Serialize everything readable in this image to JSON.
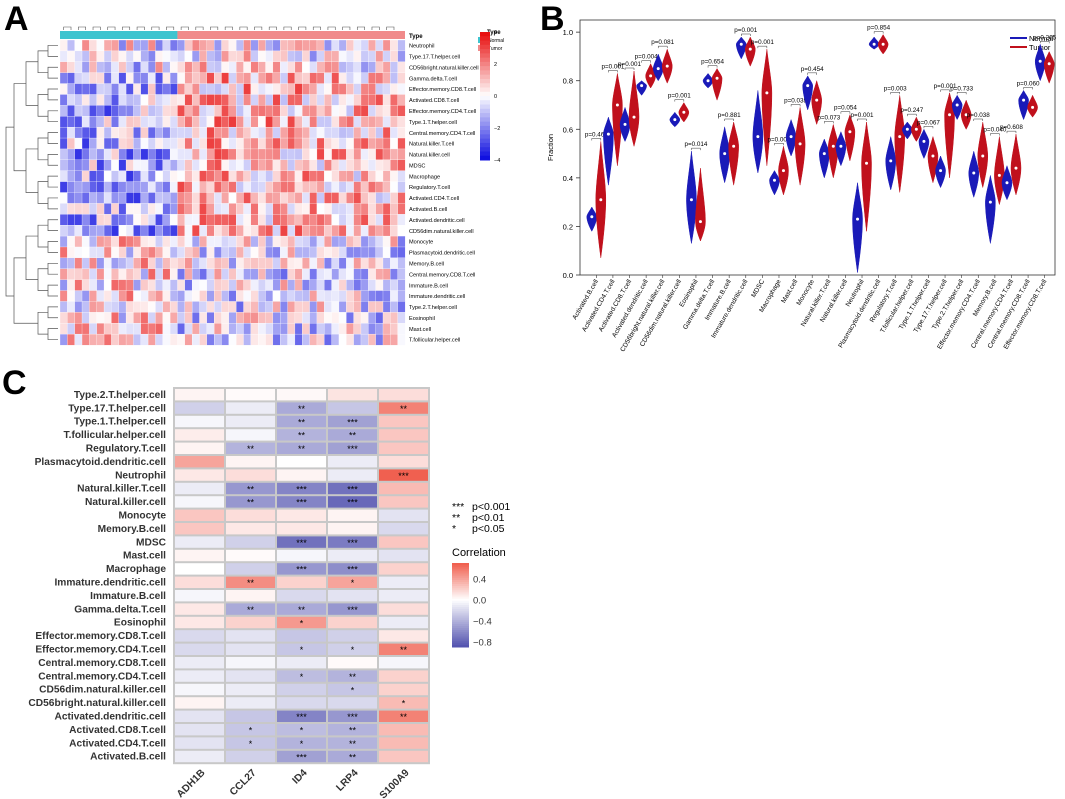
{
  "panels": {
    "a": "A",
    "b": "B",
    "c": "C"
  },
  "chart_data": [
    {
      "id": "A",
      "type": "heatmap",
      "title": "",
      "annotation_label": "Type",
      "groups": [
        {
          "name": "Normal",
          "color": "#3ec4cf",
          "count": 16
        },
        {
          "name": "Tumor",
          "color": "#f08a8a",
          "count": 31
        }
      ],
      "rows": [
        "Neutrophil",
        "Type.17.T.helper.cell",
        "CD56bright.natural.killer.cell",
        "Gamma.delta.T.cell",
        "Effector.memory.CD8.T.cell",
        "Activated.CD8.T.cell",
        "Effector.memory.CD4.T.cell",
        "Type.1.T.helper.cell",
        "Central.memory.CD4.T.cell",
        "Natural.killer.T.cell",
        "Natural.killer.cell",
        "MDSC",
        "Macrophage",
        "Regulatory.T.cell",
        "Activated.CD4.T.cell",
        "Activated.B.cell",
        "Activated.dendritic.cell",
        "CD56dim.natural.killer.cell",
        "Monocyte",
        "Plasmacytoid.dendritic.cell",
        "Memory.B.cell",
        "Central.memory.CD8.T.cell",
        "Immature.B.cell",
        "Immature.dendritic.cell",
        "Type.2.T.helper.cell",
        "Eosinophil",
        "Mast.cell",
        "T.follicular.helper.cell"
      ],
      "legend": {
        "title": "Type",
        "items": [
          "Normal",
          "Tumor"
        ]
      },
      "color_scale": {
        "ticks": [
          "4",
          "2",
          "0",
          "−2",
          "−4"
        ],
        "values": [
          4,
          2,
          0,
          -2,
          -4
        ],
        "low": "#1010e0",
        "mid": "#ffffff",
        "high": "#e81010"
      }
    },
    {
      "id": "B",
      "type": "violin",
      "ylabel": "Fraction",
      "ylim": [
        0,
        1.05
      ],
      "yticks": [
        "0.0",
        "0.2",
        "0.4",
        "0.6",
        "0.8",
        "1.0"
      ],
      "ytick_values": [
        0,
        0.2,
        0.4,
        0.6,
        0.8,
        1.0
      ],
      "legend": [
        {
          "name": "Normal",
          "color": "#1a1ab8"
        },
        {
          "name": "Tumor",
          "color": "#c0101c"
        }
      ],
      "categories": [
        "Activated.B.cell",
        "Activated.CD4.T.cell",
        "Activated.CD8.T.cell",
        "Activated.dendritic.cell",
        "CD56bright.natural.killer.cell",
        "CD56dim.natural.killer.cell",
        "Eosinophil",
        "Gamma.delta.T.cell",
        "Immature.B.cell",
        "Immature.dendritic.cell",
        "MDSC",
        "Macrophage",
        "Mast.cell",
        "Monocyte",
        "Natural.killer.T.cell",
        "Natural.killer.cell",
        "Neutrophil",
        "Plasmacytoid.dendritic.cell",
        "Regulatory.T.cell",
        "T.follicular.helper.cell",
        "Type.1.T.helper.cell",
        "Type.17.T.helper.cell",
        "Type.2.T.helper.cell",
        "Effector.memory.CD4.T.cell",
        "Memory.B.cell",
        "Central.memory.CD4.T.cell",
        "Central.memory.CD8.T.cell",
        "Effector.memory.CD8.T.cell"
      ],
      "pvalues": [
        "p=0.468",
        "p=0.001",
        "p=0.001",
        "p=0.004",
        "p=0.081",
        "p=0.001",
        "p=0.014",
        "p=0.654",
        "p=0.881",
        "p=0.001",
        "p=0.001",
        "p=0.003",
        "p=0.038",
        "p=0.454",
        "p=0.073",
        "p=0.054",
        "p=0.001",
        "p=0.854",
        "p=0.003",
        "p=0.247",
        "p=0.067",
        "p=0.001",
        "p=0.733",
        "p=0.038",
        "p=0.040",
        "p=0.608",
        "p=0.060",
        "p=0.265"
      ],
      "normal_median": [
        0.24,
        0.58,
        0.62,
        0.78,
        0.85,
        0.64,
        0.31,
        0.8,
        0.5,
        0.95,
        0.57,
        0.39,
        0.57,
        0.78,
        0.5,
        0.53,
        0.23,
        0.95,
        0.47,
        0.6,
        0.55,
        0.43,
        0.7,
        0.42,
        0.3,
        0.38,
        0.72,
        0.88
      ],
      "normal_min": [
        0.18,
        0.37,
        0.55,
        0.74,
        0.8,
        0.61,
        0.13,
        0.77,
        0.38,
        0.89,
        0.42,
        0.33,
        0.49,
        0.68,
        0.4,
        0.45,
        0.01,
        0.93,
        0.35,
        0.56,
        0.48,
        0.36,
        0.64,
        0.32,
        0.13,
        0.31,
        0.64,
        0.8
      ],
      "normal_max": [
        0.28,
        0.65,
        0.69,
        0.8,
        0.91,
        0.67,
        0.51,
        0.83,
        0.61,
        0.98,
        0.76,
        0.43,
        0.64,
        0.82,
        0.56,
        0.59,
        0.38,
        0.98,
        0.57,
        0.63,
        0.6,
        0.49,
        0.74,
        0.51,
        0.41,
        0.45,
        0.76,
        0.95
      ],
      "tumor_median": [
        0.31,
        0.7,
        0.65,
        0.82,
        0.86,
        0.67,
        0.22,
        0.81,
        0.53,
        0.93,
        0.75,
        0.43,
        0.54,
        0.72,
        0.53,
        0.59,
        0.46,
        0.95,
        0.57,
        0.6,
        0.49,
        0.66,
        0.66,
        0.49,
        0.41,
        0.44,
        0.69,
        0.87
      ],
      "tumor_min": [
        0.07,
        0.45,
        0.53,
        0.77,
        0.79,
        0.63,
        0.14,
        0.72,
        0.37,
        0.86,
        0.45,
        0.33,
        0.37,
        0.62,
        0.4,
        0.47,
        0.18,
        0.91,
        0.34,
        0.55,
        0.38,
        0.4,
        0.6,
        0.36,
        0.29,
        0.33,
        0.65,
        0.79
      ],
      "tumor_max": [
        0.55,
        0.83,
        0.84,
        0.87,
        0.93,
        0.71,
        0.44,
        0.85,
        0.63,
        0.98,
        0.93,
        0.53,
        0.69,
        0.8,
        0.62,
        0.66,
        0.63,
        0.99,
        0.74,
        0.65,
        0.57,
        0.75,
        0.72,
        0.63,
        0.57,
        0.58,
        0.74,
        0.92
      ]
    },
    {
      "id": "C",
      "type": "heatmap",
      "rows": [
        "Type.2.T.helper.cell",
        "Type.17.T.helper.cell",
        "Type.1.T.helper.cell",
        "T.follicular.helper.cell",
        "Regulatory.T.cell",
        "Plasmacytoid.dendritic.cell",
        "Neutrophil",
        "Natural.killer.T.cell",
        "Natural.killer.cell",
        "Monocyte",
        "Memory.B.cell",
        "MDSC",
        "Mast.cell",
        "Macrophage",
        "Immature.dendritic.cell",
        "Immature.B.cell",
        "Gamma.delta.T.cell",
        "Eosinophil",
        "Effector.memory.CD8.T.cell",
        "Effector.memory.CD4.T.cell",
        "Central.memory.CD8.T.cell",
        "Central.memory.CD4.T.cell",
        "CD56dim.natural.killer.cell",
        "CD56bright.natural.killer.cell",
        "Activated.dendritic.cell",
        "Activated.CD8.T.cell",
        "Activated.CD4.T.cell",
        "Activated.B.cell"
      ],
      "columns": [
        "ADH1B",
        "CCL27",
        "ID4",
        "LRP4",
        "S100A9"
      ],
      "values": [
        [
          0.05,
          0.02,
          0.03,
          0.12,
          0.15
        ],
        [
          -0.25,
          -0.1,
          -0.45,
          -0.3,
          0.55
        ],
        [
          -0.05,
          -0.1,
          -0.45,
          -0.5,
          0.25
        ],
        [
          0.08,
          -0.05,
          -0.4,
          -0.45,
          0.25
        ],
        [
          0.05,
          -0.4,
          -0.45,
          -0.5,
          0.25
        ],
        [
          0.4,
          0.05,
          0.0,
          -0.1,
          0.15
        ],
        [
          0.1,
          0.15,
          0.05,
          -0.1,
          0.7
        ],
        [
          -0.1,
          -0.55,
          -0.65,
          -0.75,
          0.3
        ],
        [
          -0.05,
          -0.55,
          -0.65,
          -0.8,
          0.25
        ],
        [
          0.25,
          0.15,
          0.1,
          0.05,
          -0.15
        ],
        [
          0.25,
          0.1,
          0.1,
          0.05,
          -0.2
        ],
        [
          -0.1,
          -0.25,
          -0.75,
          -0.7,
          0.25
        ],
        [
          0.05,
          0.02,
          -0.05,
          -0.1,
          -0.15
        ],
        [
          0.0,
          -0.25,
          -0.55,
          -0.6,
          0.2
        ],
        [
          0.15,
          0.5,
          0.2,
          0.4,
          -0.1
        ],
        [
          -0.05,
          0.05,
          -0.2,
          -0.15,
          -0.1
        ],
        [
          0.1,
          -0.45,
          -0.45,
          -0.55,
          0.15
        ],
        [
          0.1,
          0.2,
          0.45,
          0.2,
          -0.1
        ],
        [
          -0.2,
          -0.15,
          -0.3,
          -0.25,
          0.1
        ],
        [
          -0.2,
          -0.15,
          -0.3,
          -0.25,
          0.55
        ],
        [
          -0.1,
          -0.05,
          -0.1,
          0.02,
          -0.05
        ],
        [
          -0.1,
          -0.15,
          -0.35,
          -0.4,
          0.2
        ],
        [
          -0.05,
          -0.1,
          -0.25,
          -0.3,
          0.2
        ],
        [
          0.05,
          -0.1,
          -0.2,
          -0.2,
          0.3
        ],
        [
          -0.15,
          -0.3,
          -0.65,
          -0.55,
          0.55
        ],
        [
          -0.15,
          -0.3,
          -0.35,
          -0.4,
          0.3
        ],
        [
          -0.15,
          -0.3,
          -0.4,
          -0.4,
          0.3
        ],
        [
          -0.1,
          -0.25,
          -0.5,
          -0.45,
          0.25
        ]
      ],
      "stars": [
        [
          "",
          "",
          "",
          "",
          ""
        ],
        [
          "",
          "",
          "**",
          "",
          "**"
        ],
        [
          "",
          "",
          "**",
          "***",
          ""
        ],
        [
          "",
          "",
          "**",
          "**",
          ""
        ],
        [
          "",
          "**",
          "**",
          "***",
          ""
        ],
        [
          "",
          "",
          "",
          "",
          ""
        ],
        [
          "",
          "",
          "",
          "",
          "***"
        ],
        [
          "",
          "**",
          "***",
          "***",
          ""
        ],
        [
          "",
          "**",
          "***",
          "***",
          ""
        ],
        [
          "",
          "",
          "",
          "",
          ""
        ],
        [
          "",
          "",
          "",
          "",
          ""
        ],
        [
          "",
          "",
          "***",
          "***",
          ""
        ],
        [
          "",
          "",
          "",
          "",
          ""
        ],
        [
          "",
          "",
          "***",
          "***",
          ""
        ],
        [
          "",
          "**",
          "",
          "*",
          ""
        ],
        [
          "",
          "",
          "",
          "",
          ""
        ],
        [
          "",
          "**",
          "**",
          "***",
          ""
        ],
        [
          "",
          "",
          "*",
          "",
          ""
        ],
        [
          "",
          "",
          "",
          "",
          ""
        ],
        [
          "",
          "",
          "*",
          "*",
          "**"
        ],
        [
          "",
          "",
          "",
          "",
          ""
        ],
        [
          "",
          "",
          "*",
          "**",
          ""
        ],
        [
          "",
          "",
          "",
          "*",
          ""
        ],
        [
          "",
          "",
          "",
          "",
          "*"
        ],
        [
          "",
          "",
          "***",
          "***",
          "**"
        ],
        [
          "",
          "*",
          "*",
          "**",
          ""
        ],
        [
          "",
          "*",
          "*",
          "**",
          ""
        ],
        [
          "",
          "",
          "***",
          "**",
          ""
        ]
      ],
      "significance_legend": [
        {
          "stars": "***",
          "label": "p<0.001"
        },
        {
          "stars": "**",
          "label": "p<0.01"
        },
        {
          "stars": "*",
          "label": "p<0.05"
        }
      ],
      "colorbar": {
        "title": "Correlation",
        "ticks": [
          "0.4",
          "0.0",
          "−0.4",
          "−0.8"
        ],
        "values": [
          0.4,
          0.0,
          -0.4,
          -0.8
        ],
        "low": "#5555b0",
        "mid": "#ffffff",
        "high": "#f06050"
      }
    }
  ]
}
